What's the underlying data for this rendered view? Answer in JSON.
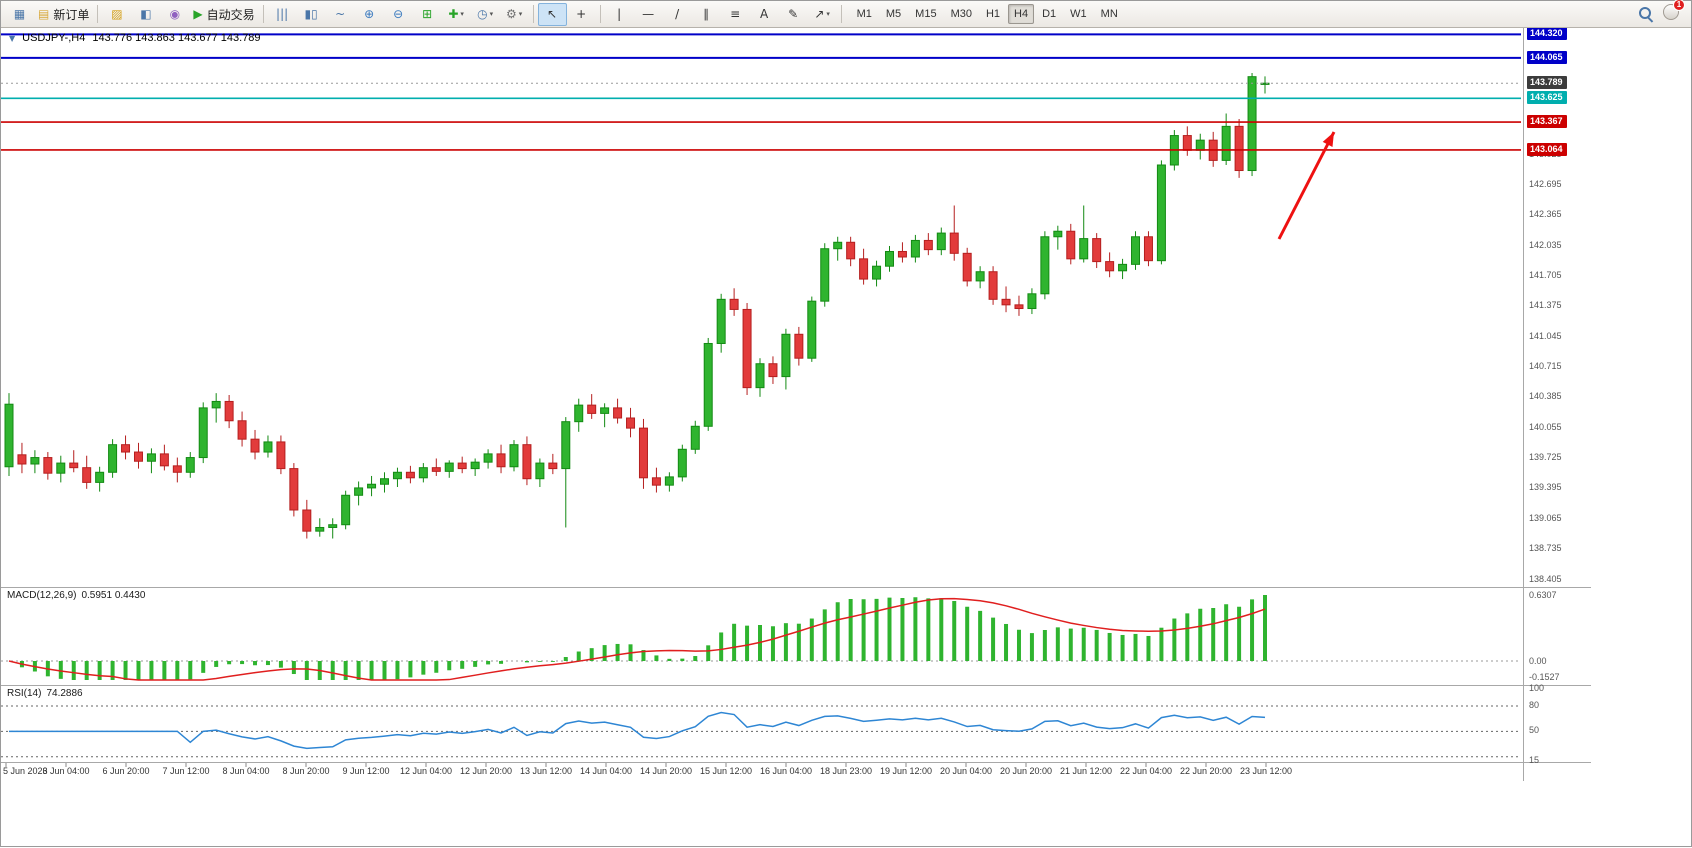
{
  "toolbar": {
    "items": [
      {
        "name": "chart-window-icon",
        "glyph": "▦",
        "color": "#4a76a8"
      },
      {
        "name": "new-order-button",
        "glyph": "▤",
        "color": "#d8a93c",
        "label": "新订单"
      },
      {
        "sep": true
      },
      {
        "name": "charts-profile-icon",
        "glyph": "▨",
        "color": "#d4a017"
      },
      {
        "name": "data-window-icon",
        "glyph": "◧",
        "color": "#4a76a8"
      },
      {
        "name": "support-icon",
        "glyph": "◉",
        "color": "#9060c0"
      },
      {
        "name": "auto-trading-button",
        "glyph": "▶",
        "color": "#28a428",
        "label": "自动交易"
      },
      {
        "sep": true
      },
      {
        "name": "ohlc-bars-chart-icon",
        "glyph": "|||",
        "color": "#4a76a8"
      },
      {
        "name": "candlestick-chart-icon",
        "glyph": "▮▯",
        "color": "#4a76a8"
      },
      {
        "name": "line-chart-icon",
        "glyph": "~",
        "color": "#4a76a8"
      },
      {
        "name": "zoom-in-icon",
        "glyph": "⊕",
        "color": "#3a7abf"
      },
      {
        "name": "zoom-out-icon",
        "glyph": "⊖",
        "color": "#3a7abf"
      },
      {
        "name": "tile-windows-icon",
        "glyph": "⊞",
        "color": "#28a428"
      },
      {
        "name": "new-chart-icon",
        "glyph": "✚",
        "color": "#28a428",
        "dropdown": true
      },
      {
        "name": "periods-icon",
        "glyph": "◷",
        "color": "#4a76a8",
        "dropdown": true
      },
      {
        "name": "templates-icon",
        "glyph": "⚙",
        "color": "#707070",
        "dropdown": true
      },
      {
        "sep": true
      },
      {
        "name": "cursor-icon",
        "glyph": "↖",
        "color": "#333333",
        "active": true
      },
      {
        "name": "crosshair-icon",
        "glyph": "+",
        "color": "#333333"
      },
      {
        "sep": true
      },
      {
        "name": "vertical-line-icon",
        "glyph": "|",
        "color": "#333333"
      },
      {
        "name": "horizontal-line-icon",
        "glyph": "—",
        "color": "#333333"
      },
      {
        "name": "trendline-icon",
        "glyph": "/",
        "color": "#333333"
      },
      {
        "name": "equidistant-channel-icon",
        "glyph": "∥",
        "color": "#333333"
      },
      {
        "name": "fibonacci-icon",
        "glyph": "≡",
        "color": "#333333"
      },
      {
        "name": "text-icon",
        "glyph": "A",
        "color": "#333333"
      },
      {
        "name": "text-label-icon",
        "glyph": "✎",
        "color": "#333333"
      },
      {
        "name": "arrows-icon",
        "glyph": "↗",
        "color": "#333333",
        "dropdown": true
      },
      {
        "sep": true
      }
    ],
    "timeframes": [
      "M1",
      "M5",
      "M15",
      "M30",
      "H1",
      "H4",
      "D1",
      "W1",
      "MN"
    ],
    "active_timeframe": "H4",
    "notification_count": "1"
  },
  "chart": {
    "one_click_icon": "▼",
    "symbol": "USDJPY-,H4",
    "ohlc": "143.776 143.863 143.677 143.789",
    "macd_label": "MACD(12,26,9)",
    "macd_values": "0.5951 0.4430",
    "rsi_label": "RSI(14)",
    "rsi_value": "74.2886"
  },
  "chart_data": {
    "type": "candlestick",
    "symbol": "USDJPY-",
    "timeframe": "H4",
    "current_bar": {
      "open": 143.776,
      "high": 143.863,
      "low": 143.677,
      "close": 143.789
    },
    "y_axis_range": [
      138.4,
      144.4
    ],
    "candles": [
      [
        139.62,
        140.42,
        139.52,
        140.3
      ],
      [
        139.75,
        139.88,
        139.55,
        139.65
      ],
      [
        139.65,
        139.8,
        139.55,
        139.72
      ],
      [
        139.72,
        139.78,
        139.48,
        139.55
      ],
      [
        139.55,
        139.74,
        139.45,
        139.66
      ],
      [
        139.66,
        139.8,
        139.56,
        139.61
      ],
      [
        139.61,
        139.74,
        139.38,
        139.45
      ],
      [
        139.45,
        139.62,
        139.35,
        139.56
      ],
      [
        139.56,
        139.92,
        139.5,
        139.86
      ],
      [
        139.86,
        139.96,
        139.7,
        139.78
      ],
      [
        139.78,
        139.88,
        139.6,
        139.68
      ],
      [
        139.68,
        139.82,
        139.55,
        139.76
      ],
      [
        139.76,
        139.86,
        139.58,
        139.63
      ],
      [
        139.63,
        139.72,
        139.45,
        139.56
      ],
      [
        139.56,
        139.78,
        139.5,
        139.72
      ],
      [
        139.72,
        140.32,
        139.66,
        140.26
      ],
      [
        140.26,
        140.42,
        140.1,
        140.33
      ],
      [
        140.33,
        140.4,
        140.04,
        140.12
      ],
      [
        140.12,
        140.22,
        139.84,
        139.92
      ],
      [
        139.92,
        140.02,
        139.7,
        139.78
      ],
      [
        139.78,
        139.96,
        139.72,
        139.89
      ],
      [
        139.89,
        139.96,
        139.54,
        139.6
      ],
      [
        139.6,
        139.66,
        139.08,
        139.15
      ],
      [
        139.15,
        139.26,
        138.84,
        138.92
      ],
      [
        138.92,
        139.06,
        138.86,
        138.96
      ],
      [
        138.96,
        139.06,
        138.84,
        138.99
      ],
      [
        138.99,
        139.36,
        138.94,
        139.31
      ],
      [
        139.31,
        139.46,
        139.2,
        139.39
      ],
      [
        139.39,
        139.52,
        139.3,
        139.43
      ],
      [
        139.43,
        139.56,
        139.34,
        139.49
      ],
      [
        139.49,
        139.61,
        139.4,
        139.56
      ],
      [
        139.56,
        139.63,
        139.44,
        139.5
      ],
      [
        139.5,
        139.66,
        139.45,
        139.61
      ],
      [
        139.61,
        139.71,
        139.52,
        139.57
      ],
      [
        139.57,
        139.69,
        139.5,
        139.66
      ],
      [
        139.66,
        139.73,
        139.55,
        139.6
      ],
      [
        139.6,
        139.71,
        139.52,
        139.67
      ],
      [
        139.67,
        139.81,
        139.6,
        139.76
      ],
      [
        139.76,
        139.86,
        139.55,
        139.62
      ],
      [
        139.62,
        139.91,
        139.57,
        139.86
      ],
      [
        139.86,
        139.95,
        139.42,
        139.49
      ],
      [
        139.49,
        139.71,
        139.4,
        139.66
      ],
      [
        139.66,
        139.76,
        139.54,
        139.6
      ],
      [
        139.6,
        140.16,
        138.96,
        140.11
      ],
      [
        140.11,
        140.36,
        140.0,
        140.29
      ],
      [
        140.29,
        140.41,
        140.14,
        140.2
      ],
      [
        140.2,
        140.31,
        140.05,
        140.26
      ],
      [
        140.26,
        140.36,
        140.09,
        140.15
      ],
      [
        140.15,
        140.26,
        139.94,
        140.04
      ],
      [
        140.04,
        140.14,
        139.38,
        139.5
      ],
      [
        139.5,
        139.61,
        139.34,
        139.42
      ],
      [
        139.42,
        139.56,
        139.35,
        139.51
      ],
      [
        139.51,
        139.86,
        139.46,
        139.81
      ],
      [
        139.81,
        140.12,
        139.76,
        140.06
      ],
      [
        140.06,
        141.02,
        140.01,
        140.96
      ],
      [
        140.96,
        141.5,
        140.86,
        141.44
      ],
      [
        141.44,
        141.56,
        141.26,
        141.33
      ],
      [
        141.33,
        141.4,
        140.4,
        140.48
      ],
      [
        140.48,
        140.8,
        140.38,
        140.74
      ],
      [
        140.74,
        140.82,
        140.52,
        140.6
      ],
      [
        140.6,
        141.12,
        140.46,
        141.06
      ],
      [
        141.06,
        141.14,
        140.72,
        140.8
      ],
      [
        140.8,
        141.47,
        140.76,
        141.42
      ],
      [
        141.42,
        142.05,
        141.36,
        141.99
      ],
      [
        141.99,
        142.12,
        141.86,
        142.06
      ],
      [
        142.06,
        142.12,
        141.8,
        141.88
      ],
      [
        141.88,
        141.99,
        141.6,
        141.66
      ],
      [
        141.66,
        141.86,
        141.58,
        141.8
      ],
      [
        141.8,
        142.02,
        141.74,
        141.96
      ],
      [
        141.96,
        142.06,
        141.84,
        141.9
      ],
      [
        141.9,
        142.14,
        141.84,
        142.08
      ],
      [
        142.08,
        142.16,
        141.92,
        141.98
      ],
      [
        141.98,
        142.22,
        141.92,
        142.16
      ],
      [
        142.16,
        142.46,
        141.86,
        141.94
      ],
      [
        141.94,
        142.0,
        141.58,
        141.64
      ],
      [
        141.64,
        141.8,
        141.56,
        141.74
      ],
      [
        141.74,
        141.8,
        141.38,
        141.44
      ],
      [
        141.44,
        141.58,
        141.3,
        141.38
      ],
      [
        141.38,
        141.48,
        141.26,
        141.34
      ],
      [
        141.34,
        141.56,
        141.28,
        141.5
      ],
      [
        141.5,
        142.18,
        141.44,
        142.12
      ],
      [
        142.12,
        142.24,
        141.98,
        142.18
      ],
      [
        142.18,
        142.26,
        141.82,
        141.88
      ],
      [
        141.88,
        142.46,
        141.84,
        142.1
      ],
      [
        142.1,
        142.16,
        141.78,
        141.85
      ],
      [
        141.85,
        141.95,
        141.68,
        141.75
      ],
      [
        141.75,
        141.88,
        141.66,
        141.82
      ],
      [
        141.82,
        142.18,
        141.76,
        142.12
      ],
      [
        142.12,
        142.18,
        141.8,
        141.86
      ],
      [
        141.86,
        142.95,
        141.82,
        142.9
      ],
      [
        142.9,
        143.28,
        142.84,
        143.22
      ],
      [
        143.22,
        143.32,
        143.0,
        143.06
      ],
      [
        143.06,
        143.24,
        142.96,
        143.17
      ],
      [
        143.17,
        143.26,
        142.88,
        142.95
      ],
      [
        142.95,
        143.46,
        142.9,
        143.32
      ],
      [
        143.32,
        143.4,
        142.76,
        142.84
      ],
      [
        142.84,
        143.9,
        142.78,
        143.86
      ],
      [
        143.776,
        143.863,
        143.677,
        143.789
      ]
    ],
    "time_labels": [
      "5 Jun 2023",
      "6 Jun 04:00",
      "6 Jun 20:00",
      "7 Jun 12:00",
      "8 Jun 04:00",
      "8 Jun 20:00",
      "9 Jun 12:00",
      "12 Jun 04:00",
      "12 Jun 20:00",
      "13 Jun 12:00",
      "14 Jun 04:00",
      "14 Jun 20:00",
      "15 Jun 12:00",
      "16 Jun 04:00",
      "18 Jun 23:00",
      "19 Jun 12:00",
      "20 Jun 04:00",
      "20 Jun 20:00",
      "21 Jun 12:00",
      "22 Jun 04:00",
      "22 Jun 20:00",
      "23 Jun 12:00"
    ],
    "price_axis": {
      "ticks": [
        "143.025",
        "142.695",
        "142.365",
        "142.035",
        "141.705",
        "141.375",
        "141.045",
        "140.715",
        "140.385",
        "140.055",
        "139.725",
        "139.395",
        "139.065",
        "138.735",
        "138.405"
      ],
      "badges": [
        {
          "label": "144.320",
          "price": 144.32,
          "color": "#0000C8"
        },
        {
          "label": "144.065",
          "price": 144.065,
          "color": "#0000C8"
        },
        {
          "label": "143.789",
          "price": 143.789,
          "color": "#3C3C3C"
        },
        {
          "label": "143.625",
          "price": 143.625,
          "color": "#00AEAE"
        },
        {
          "label": "143.367",
          "price": 143.367,
          "color": "#CC0000"
        },
        {
          "label": "143.064",
          "price": 143.064,
          "color": "#CC0000"
        }
      ]
    },
    "levels": [
      {
        "price": 144.32,
        "color": "#0000C8",
        "width": 2,
        "style": "solid"
      },
      {
        "price": 144.065,
        "color": "#0000C8",
        "width": 2,
        "style": "solid"
      },
      {
        "price": 143.789,
        "color": "#9A9A9A",
        "width": 1,
        "style": "dotted"
      },
      {
        "price": 143.625,
        "color": "#00AEAE",
        "width": 1.6,
        "style": "solid"
      },
      {
        "price": 143.367,
        "color": "#CC0000",
        "width": 1.6,
        "style": "solid"
      },
      {
        "price": 143.064,
        "color": "#CC0000",
        "width": 1.6,
        "style": "solid"
      }
    ],
    "macd": {
      "params": [
        12,
        26,
        9
      ],
      "value": 0.5951,
      "signal": 0.443,
      "axis": [
        {
          "label": "0.6307",
          "value": 0.6307
        },
        {
          "label": "0.00",
          "value": 0
        },
        {
          "label": "-0.1527",
          "value": -0.1527
        }
      ],
      "displayed_max": 0.6307,
      "displayed_min": -0.1527
    },
    "rsi": {
      "period": 14,
      "value": 74.2886,
      "axis": [
        {
          "label": "100",
          "value": 100
        },
        {
          "label": "80",
          "value": 80
        },
        {
          "label": "50",
          "value": 50
        },
        {
          "label": "15",
          "value": 15
        }
      ],
      "levels": [
        80,
        50,
        20
      ],
      "range": [
        15,
        100
      ]
    },
    "annotation_arrow": {
      "from": [
        1278,
        238
      ],
      "to": [
        1333,
        131
      ],
      "color": "#EE1111"
    },
    "colors": {
      "up": "#2FB42F",
      "down": "#E23B3B",
      "up_border": "#138A13",
      "down_border": "#B51F1F",
      "macd_histogram": "#2FB42F",
      "macd_signal": "#E01F1F",
      "rsi_line": "#2E86D4"
    }
  }
}
